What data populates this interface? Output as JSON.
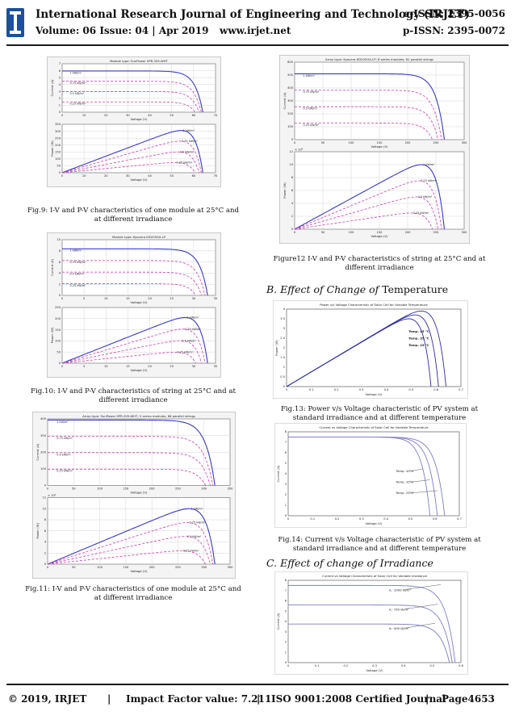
{
  "header": {
    "journal_title": "International Research Journal of Engineering and Technology (IRJET)",
    "eissn": "e-ISSN: 2395-0056",
    "volume": "Volume: 06 Issue: 04 | Apr 2019",
    "url": "www.irjet.net",
    "pissn": "p-ISSN: 2395-0072",
    "logo_text": "IRJET"
  },
  "figures": {
    "fig9": {
      "caption": "Fig.9: I-V and P-V characteristics of one module at 25°C and at different irradiance",
      "plot_title": "Module type: SunPower SPR-305-WHT",
      "xlabel": "Voltage (V)",
      "ylabel_top": "Current (A)",
      "ylabel_bottom": "Power (W)"
    },
    "fig10": {
      "caption": "Fig.10: I-V and P-V characteristics of string at 25°C and at different irradiance",
      "plot_title": "Module type: Kyocera KD205GX-LP",
      "xlabel": "Voltage (V)",
      "ylabel_top": "Current (A)",
      "ylabel_bottom": "Power (W)"
    },
    "fig11": {
      "caption": "Fig.11: I-V and P-V characteristics of one module at 25°C and at different irradiance",
      "plot_title": "Array type: SunPower SPR-305-WHT; 5 series modules; 66 parallel strings",
      "xlabel": "Voltage (V)",
      "ylabel_top": "Current (A)",
      "ylabel_bottom": "Power (W)",
      "exp": "× 10⁴"
    },
    "fig12": {
      "caption": "Figure12 I-V and P-V characteristics of string at 25°C and at different irradiance",
      "plot_title": "Array type: Kyocera KD205GX-LP; 8 series modules; 61 parallel strings",
      "xlabel": "Voltage (V)",
      "ylabel_top": "Current (A)",
      "ylabel_bottom": "Power (W)",
      "exp": "× 10⁴"
    },
    "fig13": {
      "caption": "Fig.13: Power v/s Voltage characteristic of PV system at standard irradiance and at different temperature",
      "plot_title": "Power v/s Voltage Characteristic of Solar Cell for Variable Temperature",
      "xlabel": "Voltage (V)",
      "ylabel": "Power (W)",
      "legend": [
        "Temp. 45 °C",
        "Temp. 35 °C",
        "Temp. 25 °C"
      ]
    },
    "fig14": {
      "caption": "Fig.14: Current v/s Voltage characteristic of PV system at standard irradiance and at different temperature",
      "plot_title": "Current vs Voltage Characteristic of Solar Cell for Variable Temperature",
      "xlabel": "Voltage (V)",
      "ylabel": "Current (A)",
      "labels": [
        "Temp. 45°C",
        "Temp. 35°C",
        "Temp. 25°C"
      ]
    },
    "fig15": {
      "plot_title": "Current vs Voltage Characteristic of Solar Cell for Variable Irradiance",
      "xlabel": "Voltage (V)",
      "ylabel": "Current (A)",
      "labels": [
        "Ir.: 1000 W/m²",
        "Ir.: 750 W/m²",
        "Ir.: 500 W/m²"
      ]
    }
  },
  "irradiance_labels": [
    "1 kW/m²",
    "0.75 kW/m²",
    "0.5 kW/m²",
    "0.25 kW/m²"
  ],
  "sections": {
    "temperature_heading_italic": "B. Effect of Change of",
    "temperature_heading_rest": "Temperature",
    "irradiance_heading": "C. Effect of change of Irradiance"
  },
  "footer": {
    "copyright": "© 2019, IRJET",
    "impact": "Impact Factor value: 7.211",
    "iso": "ISO 9001:2008 Certified Journal",
    "page": "Page4653",
    "sep": "|"
  },
  "chart_data": [
    {
      "type": "line",
      "id": "fig9",
      "title": "Module type: SunPower SPR-305-WHT",
      "xlabel": "Voltage (V)",
      "xlim": [
        0,
        70
      ],
      "panels": [
        {
          "ylabel": "Current (A)",
          "ylim": [
            0,
            7
          ],
          "series": [
            {
              "name": "1 kW/m²",
              "isc": 5.96,
              "voc": 64.2
            },
            {
              "name": "0.75 kW/m²",
              "isc": 4.47,
              "voc": 63.5
            },
            {
              "name": "0.5 kW/m²",
              "isc": 2.98,
              "voc": 62.5
            },
            {
              "name": "0.25 kW/m²",
              "isc": 1.49,
              "voc": 60.7
            }
          ]
        },
        {
          "ylabel": "Power (W)",
          "ylim": [
            0,
            350
          ],
          "series": [
            {
              "name": "1 kW/m²",
              "pmax": 305
            },
            {
              "name": "0.75 kW/m²",
              "pmax": 228
            },
            {
              "name": "0.5 kW/m²",
              "pmax": 150
            },
            {
              "name": "0.25 kW/m²",
              "pmax": 73
            }
          ]
        }
      ]
    },
    {
      "type": "line",
      "id": "fig10",
      "title": "Module type: Kyocera KD205GX-LP",
      "xlabel": "Voltage (V)",
      "xlim": [
        0,
        35
      ],
      "panels": [
        {
          "ylabel": "Current (A)",
          "ylim": [
            0,
            10
          ],
          "series": [
            {
              "name": "1 kW/m²",
              "isc": 8.36,
              "voc": 33.2
            },
            {
              "name": "0.75 kW/m²",
              "isc": 6.27,
              "voc": 32.6
            },
            {
              "name": "0.5 kW/m²",
              "isc": 4.18,
              "voc": 31.8
            },
            {
              "name": "0.25 kW/m²",
              "isc": 2.09,
              "voc": 30.5
            }
          ]
        },
        {
          "ylabel": "Power (W)",
          "ylim": [
            0,
            250
          ],
          "series": [
            {
              "name": "1 kW/m²",
              "pmax": 205
            },
            {
              "name": "0.75 kW/m²",
              "pmax": 153
            },
            {
              "name": "0.5 kW/m²",
              "pmax": 101
            },
            {
              "name": "0.25 kW/m²",
              "pmax": 49
            }
          ]
        }
      ]
    },
    {
      "type": "line",
      "id": "fig11",
      "title": "Array type: SunPower SPR-305-WHT; 5 series modules; 66 parallel strings",
      "xlabel": "Voltage (V)",
      "xlim": [
        0,
        350
      ],
      "panels": [
        {
          "ylabel": "Current (A)",
          "ylim": [
            0,
            400
          ],
          "series": [
            {
              "name": "1 kW/m²",
              "isc": 393,
              "voc": 321
            },
            {
              "name": "0.75 kW/m²",
              "isc": 295,
              "voc": 317
            },
            {
              "name": "0.5 kW/m²",
              "isc": 197,
              "voc": 312
            },
            {
              "name": "0.25 kW/m²",
              "isc": 98,
              "voc": 303
            }
          ]
        },
        {
          "ylabel": "Power (W)",
          "ylim": [
            0,
            120000
          ],
          "series": [
            {
              "name": "1 kW/m²",
              "pmax": 100000
            },
            {
              "name": "0.75 kW/m²",
              "pmax": 75000
            },
            {
              "name": "0.5 kW/m²",
              "pmax": 50000
            },
            {
              "name": "0.25 kW/m²",
              "pmax": 24000
            }
          ]
        }
      ]
    },
    {
      "type": "line",
      "id": "fig12",
      "title": "Array type: Kyocera KD205GX-LP; 8 series modules; 61 parallel strings",
      "xlabel": "Voltage (V)",
      "xlim": [
        0,
        300
      ],
      "panels": [
        {
          "ylabel": "Current (A)",
          "ylim": [
            0,
            600
          ],
          "series": [
            {
              "name": "1 kW/m²",
              "isc": 510,
              "voc": 265
            },
            {
              "name": "0.75 kW/m²",
              "isc": 383,
              "voc": 260
            },
            {
              "name": "0.5 kW/m²",
              "isc": 255,
              "voc": 254
            },
            {
              "name": "0.25 kW/m²",
              "isc": 128,
              "voc": 244
            }
          ]
        },
        {
          "ylabel": "Power (W)",
          "ylim": [
            0,
            120000
          ],
          "series": [
            {
              "name": "1 kW/m²",
              "pmax": 100000
            },
            {
              "name": "0.75 kW/m²",
              "pmax": 75000
            },
            {
              "name": "0.5 kW/m²",
              "pmax": 50000
            },
            {
              "name": "0.25 kW/m²",
              "pmax": 25000
            }
          ]
        }
      ]
    },
    {
      "type": "line",
      "id": "fig13",
      "title": "Power v/s Voltage Characteristic of Solar Cell for Variable Temperature",
      "xlabel": "Voltage (V)",
      "ylabel": "Power (W)",
      "xlim": [
        0,
        0.7
      ],
      "ylim": [
        0,
        4
      ],
      "series": [
        {
          "name": "Temp. 45 °C",
          "voc": 0.58,
          "pmax": 3.5
        },
        {
          "name": "Temp. 35 °C",
          "voc": 0.61,
          "pmax": 3.7
        },
        {
          "name": "Temp. 25 °C",
          "voc": 0.64,
          "pmax": 3.9
        }
      ]
    },
    {
      "type": "line",
      "id": "fig14",
      "title": "Current vs Voltage Characteristic of Solar Cell for Variable Temperature",
      "xlabel": "Voltage (V)",
      "ylabel": "Current (A)",
      "xlim": [
        0,
        0.7
      ],
      "ylim": [
        0,
        8
      ],
      "series": [
        {
          "name": "Temp. 45°C",
          "isc": 7.5,
          "voc": 0.58
        },
        {
          "name": "Temp. 35°C",
          "isc": 7.5,
          "voc": 0.61
        },
        {
          "name": "Temp. 25°C",
          "isc": 7.5,
          "voc": 0.64
        }
      ]
    },
    {
      "type": "line",
      "id": "fig15",
      "title": "Current vs Voltage Characteristic of Solar Cell for Variable Irradiance",
      "xlabel": "Voltage (V)",
      "ylabel": "Current (A)",
      "xlim": [
        0,
        0.6
      ],
      "ylim": [
        0,
        8
      ],
      "series": [
        {
          "name": "Ir.: 1000 W/m²",
          "isc": 7.5,
          "voc": 0.58
        },
        {
          "name": "Ir.: 750 W/m²",
          "isc": 5.6,
          "voc": 0.57
        },
        {
          "name": "Ir.: 500 W/m²",
          "isc": 3.75,
          "voc": 0.56
        }
      ]
    }
  ]
}
